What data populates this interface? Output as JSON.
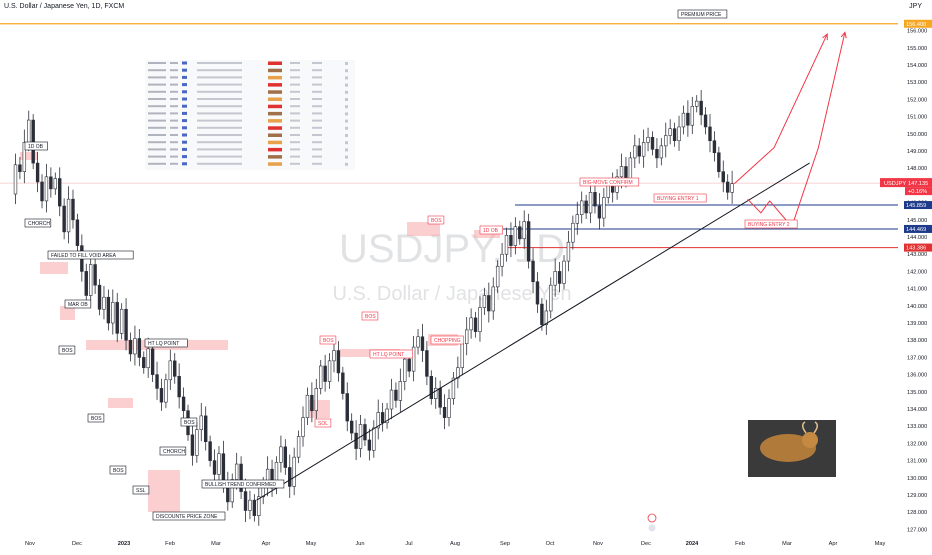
{
  "header": {
    "symbol_title": "U.S. Dollar / Japanese Yen, 1D, FXCM",
    "currency": "JPY"
  },
  "watermark": {
    "ticker": "USDJPY, 1D",
    "name": "U.S. Dollar / Japanese Yen"
  },
  "colors": {
    "candle": "#2b2e38",
    "trendline": "#131722",
    "arrow": "#f23645",
    "zone": "#f7a8a8",
    "blue_line": "#1e3a8a",
    "red_line": "#e03131",
    "premium_line": "#f5a623",
    "price_tag": "#f23645",
    "level_tag": "#1e40af"
  },
  "chart_data": {
    "type": "candlestick",
    "symbol": "USDJPY",
    "timeframe": "1D",
    "ylim": [
      126.5,
      157.2
    ],
    "price_axis_ticks": [
      127.0,
      128.0,
      129.0,
      130.0,
      131.0,
      132.0,
      133.0,
      134.0,
      135.0,
      136.0,
      137.0,
      138.0,
      139.0,
      140.0,
      141.0,
      142.0,
      143.0,
      144.0,
      145.0,
      146.0,
      148.0,
      149.0,
      150.0,
      151.0,
      152.0,
      153.0,
      154.0,
      155.0,
      156.0
    ],
    "time_axis_labels": [
      "Nov",
      "Dec",
      "2023",
      "Feb",
      "Mar",
      "Apr",
      "May",
      "Jun",
      "Jul",
      "Aug",
      "Sep",
      "Oct",
      "Nov",
      "Dec",
      "2024",
      "Feb",
      "Mar",
      "Apr",
      "May"
    ],
    "price_path": [
      [
        0,
        146.5
      ],
      [
        1,
        148.2
      ],
      [
        2,
        147.8
      ],
      [
        3,
        149.5
      ],
      [
        4,
        150.8
      ],
      [
        5,
        148.3
      ],
      [
        6,
        147.2
      ],
      [
        7,
        146.1
      ],
      [
        8,
        147.5
      ],
      [
        9,
        146.8
      ],
      [
        10,
        147.4
      ],
      [
        11,
        145.8
      ],
      [
        12,
        144.3
      ],
      [
        13,
        146.2
      ],
      [
        14,
        145.0
      ],
      [
        15,
        143.5
      ],
      [
        16,
        142.0
      ],
      [
        17,
        140.6
      ],
      [
        18,
        142.4
      ],
      [
        19,
        141.2
      ],
      [
        20,
        139.8
      ],
      [
        21,
        140.5
      ],
      [
        22,
        139.0
      ],
      [
        23,
        140.2
      ],
      [
        24,
        138.4
      ],
      [
        25,
        139.8
      ],
      [
        26,
        138.0
      ],
      [
        27,
        137.2
      ],
      [
        28,
        138.1
      ],
      [
        29,
        137.0
      ],
      [
        30,
        136.4
      ],
      [
        31,
        137.5
      ],
      [
        32,
        136.0
      ],
      [
        33,
        135.2
      ],
      [
        34,
        134.4
      ],
      [
        35,
        135.7
      ],
      [
        36,
        136.8
      ],
      [
        37,
        135.9
      ],
      [
        38,
        134.7
      ],
      [
        39,
        133.9
      ],
      [
        40,
        132.5
      ],
      [
        41,
        131.3
      ],
      [
        42,
        132.8
      ],
      [
        43,
        133.6
      ],
      [
        44,
        132.1
      ],
      [
        45,
        131.0
      ],
      [
        46,
        130.2
      ],
      [
        47,
        131.4
      ],
      [
        48,
        129.8
      ],
      [
        49,
        128.6
      ],
      [
        50,
        129.9
      ],
      [
        51,
        130.8
      ],
      [
        52,
        129.2
      ],
      [
        53,
        128.1
      ],
      [
        54,
        128.7
      ],
      [
        55,
        127.8
      ],
      [
        56,
        128.9
      ],
      [
        57,
        129.6
      ],
      [
        58,
        130.5
      ],
      [
        59,
        129.4
      ],
      [
        60,
        130.9
      ],
      [
        61,
        131.8
      ],
      [
        62,
        130.6
      ],
      [
        63,
        129.5
      ],
      [
        64,
        131.2
      ],
      [
        65,
        132.4
      ],
      [
        66,
        133.5
      ],
      [
        67,
        134.8
      ],
      [
        68,
        133.9
      ],
      [
        69,
        135.2
      ],
      [
        70,
        136.5
      ],
      [
        71,
        135.6
      ],
      [
        72,
        136.8
      ],
      [
        73,
        137.4
      ],
      [
        74,
        136.1
      ],
      [
        75,
        134.9
      ],
      [
        76,
        133.3
      ],
      [
        77,
        132.6
      ],
      [
        78,
        131.7
      ],
      [
        79,
        133.1
      ],
      [
        80,
        132.2
      ],
      [
        81,
        131.6
      ],
      [
        82,
        132.9
      ],
      [
        83,
        133.8
      ],
      [
        84,
        133.2
      ],
      [
        85,
        134.0
      ],
      [
        86,
        135.1
      ],
      [
        87,
        134.5
      ],
      [
        88,
        135.6
      ],
      [
        89,
        136.9
      ],
      [
        90,
        136.2
      ],
      [
        91,
        137.6
      ],
      [
        92,
        138.2
      ],
      [
        93,
        137.4
      ],
      [
        94,
        135.9
      ],
      [
        95,
        134.6
      ],
      [
        96,
        135.2
      ],
      [
        97,
        134.1
      ],
      [
        98,
        133.5
      ],
      [
        99,
        134.6
      ],
      [
        100,
        135.8
      ],
      [
        101,
        136.4
      ],
      [
        102,
        137.8
      ],
      [
        103,
        138.6
      ],
      [
        104,
        139.3
      ],
      [
        105,
        138.5
      ],
      [
        106,
        139.9
      ],
      [
        107,
        140.6
      ],
      [
        108,
        139.7
      ],
      [
        109,
        141.1
      ],
      [
        110,
        142.3
      ],
      [
        111,
        143.0
      ],
      [
        112,
        144.1
      ],
      [
        113,
        143.5
      ],
      [
        114,
        144.6
      ],
      [
        115,
        143.9
      ],
      [
        116,
        144.9
      ],
      [
        117,
        142.6
      ],
      [
        118,
        141.4
      ],
      [
        119,
        140.1
      ],
      [
        120,
        138.9
      ],
      [
        121,
        139.7
      ],
      [
        122,
        141.2
      ],
      [
        123,
        142.0
      ],
      [
        124,
        141.3
      ],
      [
        125,
        142.6
      ],
      [
        126,
        143.7
      ],
      [
        127,
        144.8
      ],
      [
        128,
        145.3
      ],
      [
        129,
        146.1
      ],
      [
        130,
        145.4
      ],
      [
        131,
        146.6
      ],
      [
        132,
        145.8
      ],
      [
        133,
        145.1
      ],
      [
        134,
        146.3
      ],
      [
        135,
        147.1
      ],
      [
        136,
        146.6
      ],
      [
        137,
        147.5
      ],
      [
        138,
        148.1
      ],
      [
        139,
        147.4
      ],
      [
        140,
        148.6
      ],
      [
        141,
        149.3
      ],
      [
        142,
        148.7
      ],
      [
        143,
        149.5
      ],
      [
        144,
        149.8
      ],
      [
        145,
        149.1
      ],
      [
        146,
        148.6
      ],
      [
        147,
        149.3
      ],
      [
        148,
        149.9
      ],
      [
        149,
        150.3
      ],
      [
        150,
        149.6
      ],
      [
        151,
        150.4
      ],
      [
        152,
        151.2
      ],
      [
        153,
        150.5
      ],
      [
        154,
        151.6
      ],
      [
        155,
        151.9
      ],
      [
        156,
        151.1
      ],
      [
        157,
        150.4
      ],
      [
        158,
        149.6
      ],
      [
        159,
        148.9
      ],
      [
        160,
        147.8
      ],
      [
        161,
        147.2
      ],
      [
        162,
        146.6
      ],
      [
        163,
        147.1
      ]
    ],
    "trendline": {
      "from": {
        "x_index": 55,
        "price": 128.7
      },
      "to": {
        "x_index": 180,
        "price": 148.3
      }
    },
    "projections": [
      {
        "name": "path-1",
        "points": [
          [
            163,
            147.1
          ],
          [
            172,
            149.2
          ],
          [
            184,
            155.8
          ]
        ]
      },
      {
        "name": "path-2",
        "points": [
          [
            166,
            146.2
          ],
          [
            169,
            145.4
          ],
          [
            171,
            146.1
          ],
          [
            176,
            144.6
          ],
          [
            182,
            149.2
          ],
          [
            188,
            155.9
          ]
        ]
      }
    ],
    "horizontal_levels": [
      {
        "label": "PREMIUM PRICE",
        "price": 156.4,
        "color": "#f5a623"
      },
      {
        "label": "145.859",
        "price": 145.859,
        "color": "#1e3a8a"
      },
      {
        "label": "144.469",
        "price": 144.469,
        "color": "#1e3a8a"
      },
      {
        "label": "143.386",
        "price": 143.386,
        "color": "#e03131"
      }
    ],
    "current_price": {
      "symbol": "USDJPY",
      "value": "147.135",
      "change": "+0.16%"
    },
    "annotations": [
      {
        "text": "1D OB"
      },
      {
        "text": "CHORCH"
      },
      {
        "text": "FAILED TO FILL VOID AREA"
      },
      {
        "text": "MAR OB"
      },
      {
        "text": "BOS"
      },
      {
        "text": "HT LQ POINT"
      },
      {
        "text": "BOS"
      },
      {
        "text": "BOS"
      },
      {
        "text": "SSL"
      },
      {
        "text": "DISCOUNTE PRICE ZONE"
      },
      {
        "text": "CHORCH"
      },
      {
        "text": "BOS"
      },
      {
        "text": "BULLISH TREND CONFIRMED"
      },
      {
        "text": "BOS"
      },
      {
        "text": "HT LQ POINT"
      },
      {
        "text": "BOS"
      },
      {
        "text": "BOS"
      },
      {
        "text": "CHOPPING"
      },
      {
        "text": "1D OB"
      },
      {
        "text": "BOS"
      },
      {
        "text": "SOL"
      },
      {
        "text": "BIG-MOVE CONFIRM"
      },
      {
        "text": "BUYING ENTRY 1"
      },
      {
        "text": "BUYING ENTRY 2"
      },
      {
        "text": "PREMIUM PRICE"
      }
    ]
  }
}
